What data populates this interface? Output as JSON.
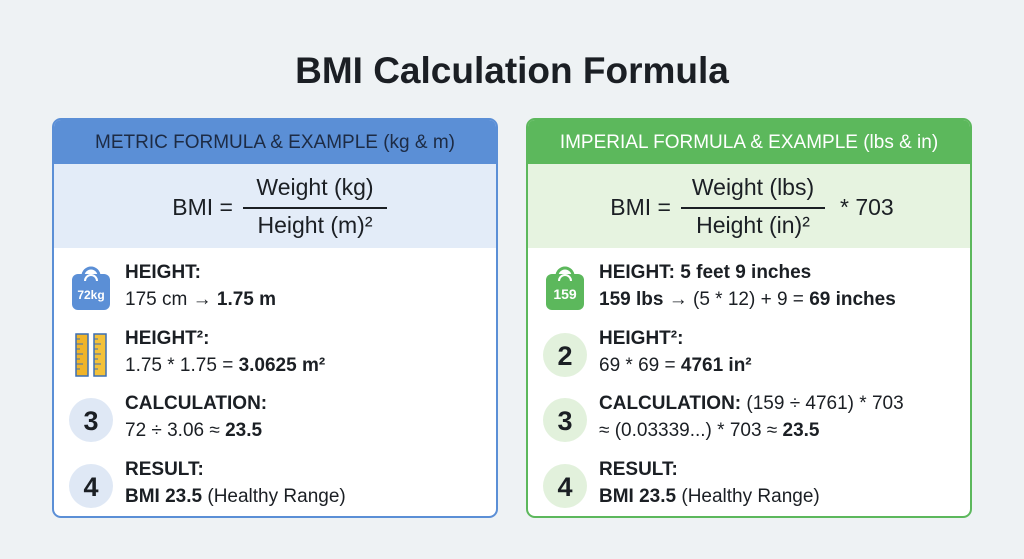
{
  "title": "BMI Calculation Formula",
  "panels": [
    {
      "header": "METRIC FORMULA & EXAMPLE (kg & m)",
      "accent": "#5b8fd6",
      "header_text": "#1d2b44",
      "formula_bg": "#e3ecf8",
      "icon_bg": "#dfe8f5",
      "formula": {
        "lhs": "BMI =",
        "numerator": "Weight (kg)",
        "denominator": "Height (m)²"
      },
      "steps": [
        {
          "icon_type": "scale",
          "icon_text": "72kg",
          "lines": [
            [
              {
                "text": "HEIGHT:",
                "bold": true
              }
            ],
            [
              {
                "text": "175 cm → ",
                "bold": false
              },
              {
                "text": "1.75 m",
                "bold": true
              }
            ]
          ]
        },
        {
          "icon_type": "ruler",
          "lines": [
            [
              {
                "text": "HEIGHT²:",
                "bold": true
              }
            ],
            [
              {
                "text": "1.75 * 1.75 = ",
                "bold": false
              },
              {
                "text": "3.0625 m²",
                "bold": true
              }
            ]
          ]
        },
        {
          "icon_type": "number",
          "icon_text": "3",
          "lines": [
            [
              {
                "text": "CALCULATION:",
                "bold": true
              }
            ],
            [
              {
                "text": "72 ÷ 3.06 ≈ ",
                "bold": false
              },
              {
                "text": "23.5",
                "bold": true
              }
            ]
          ]
        },
        {
          "icon_type": "number",
          "icon_text": "4",
          "lines": [
            [
              {
                "text": "RESULT:",
                "bold": true
              }
            ],
            [
              {
                "text": "BMI 23.5",
                "bold": true
              },
              {
                "text": " (Healthy Range)",
                "bold": false
              }
            ]
          ]
        }
      ]
    },
    {
      "header": "IMPERIAL FORMULA & EXAMPLE (lbs & in)",
      "accent": "#5cb85c",
      "header_text": "#ffffff",
      "formula_bg": "#e6f3e0",
      "icon_bg": "#e2f1dc",
      "formula": {
        "lhs": "BMI =",
        "numerator": "Weight (lbs)",
        "denominator": "Height (in)²",
        "suffix": "* 703"
      },
      "steps": [
        {
          "icon_type": "scale",
          "icon_text": "159",
          "lines": [
            [
              {
                "text": "HEIGHT: 5 feet 9 inches",
                "bold": true
              }
            ],
            [
              {
                "text": "159 lbs",
                "bold": true
              },
              {
                "text": " → (5 * 12) + 9 = ",
                "bold": false
              },
              {
                "text": "69 inches",
                "bold": true
              }
            ]
          ]
        },
        {
          "icon_type": "number",
          "icon_text": "2",
          "lines": [
            [
              {
                "text": "HEIGHT²:",
                "bold": true
              }
            ],
            [
              {
                "text": "69 * 69 = ",
                "bold": false
              },
              {
                "text": "4761 in²",
                "bold": true
              }
            ]
          ]
        },
        {
          "icon_type": "number",
          "icon_text": "3",
          "lines": [
            [
              {
                "text": "CALCULATION:",
                "bold": true
              },
              {
                "text": " (159 ÷ 4761) * 703",
                "bold": false
              }
            ],
            [
              {
                "text": "≈ (0.03339...) * 703 ≈ ",
                "bold": false
              },
              {
                "text": "23.5",
                "bold": true
              }
            ]
          ]
        },
        {
          "icon_type": "number",
          "icon_text": "4",
          "lines": [
            [
              {
                "text": "RESULT:",
                "bold": true
              }
            ],
            [
              {
                "text": "BMI 23.5",
                "bold": true
              },
              {
                "text": " (Healthy Range)",
                "bold": false
              }
            ]
          ]
        }
      ]
    }
  ]
}
